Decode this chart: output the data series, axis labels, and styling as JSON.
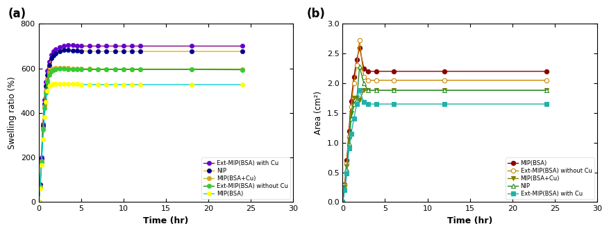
{
  "panel_a": {
    "title": "(a)",
    "xlabel": "Time (hr)",
    "ylabel": "Swelling ratio (%)",
    "xlim": [
      0,
      30
    ],
    "ylim": [
      0,
      800
    ],
    "xticks": [
      0,
      5,
      10,
      15,
      20,
      25,
      30
    ],
    "yticks": [
      0,
      200,
      400,
      600,
      800
    ],
    "series": [
      {
        "label": "Ext-MIP(BSA) with Cu",
        "line_color": "#800080",
        "marker_color": "#6600CC",
        "marker": "o",
        "time": [
          0,
          0.17,
          0.33,
          0.5,
          0.67,
          0.83,
          1.0,
          1.25,
          1.5,
          1.75,
          2.0,
          2.5,
          3.0,
          3.5,
          4.0,
          4.5,
          5.0,
          6.0,
          7.0,
          8.0,
          9.0,
          10.0,
          11.0,
          12.0,
          18.0,
          24.0
        ],
        "values": [
          0,
          80,
          200,
          350,
          460,
          540,
          590,
          630,
          660,
          675,
          685,
          695,
          700,
          705,
          703,
          702,
          700,
          700,
          700,
          700,
          700,
          700,
          700,
          700,
          700,
          700
        ]
      },
      {
        "label": "NIP",
        "line_color": "#FFA500",
        "marker_color": "#00008B",
        "marker": "o",
        "time": [
          0,
          0.17,
          0.33,
          0.5,
          0.67,
          0.83,
          1.0,
          1.25,
          1.5,
          1.75,
          2.0,
          2.5,
          3.0,
          3.5,
          4.0,
          4.5,
          5.0,
          6.0,
          7.0,
          8.0,
          9.0,
          10.0,
          11.0,
          12.0,
          18.0,
          24.0
        ],
        "values": [
          0,
          75,
          190,
          340,
          440,
          520,
          570,
          615,
          645,
          658,
          668,
          678,
          682,
          682,
          680,
          679,
          678,
          677,
          676,
          676,
          676,
          676,
          676,
          676,
          676,
          676
        ]
      },
      {
        "label": "MIP(BSA+Cu)",
        "line_color": "#9ACD32",
        "marker_color": "#DAA520",
        "marker": "o",
        "time": [
          0,
          0.17,
          0.33,
          0.5,
          0.67,
          0.83,
          1.0,
          1.25,
          1.5,
          1.75,
          2.0,
          2.5,
          3.0,
          3.5,
          4.0,
          4.5,
          5.0,
          6.0,
          7.0,
          8.0,
          9.0,
          10.0,
          11.0,
          12.0,
          18.0,
          24.0
        ],
        "values": [
          0,
          70,
          185,
          330,
          430,
          500,
          550,
          580,
          595,
          600,
          603,
          603,
          602,
          601,
          600,
          600,
          599,
          598,
          597,
          597,
          597,
          597,
          597,
          597,
          597,
          597
        ]
      },
      {
        "label": "Ext-MIP(BSA) without Cu",
        "line_color": "#228B22",
        "marker_color": "#32CD32",
        "marker": "o",
        "time": [
          0,
          0.17,
          0.33,
          0.5,
          0.67,
          0.83,
          1.0,
          1.25,
          1.5,
          1.75,
          2.0,
          2.5,
          3.0,
          3.5,
          4.0,
          4.5,
          5.0,
          6.0,
          7.0,
          8.0,
          9.0,
          10.0,
          11.0,
          12.0,
          18.0,
          24.0
        ],
        "values": [
          0,
          65,
          180,
          325,
          420,
          490,
          540,
          570,
          585,
          592,
          596,
          598,
          598,
          597,
          597,
          596,
          595,
          595,
          595,
          595,
          595,
          595,
          595,
          595,
          595,
          594
        ]
      },
      {
        "label": "MIP(BSA)",
        "line_color": "#00CED1",
        "marker_color": "#FFFF00",
        "marker": "o",
        "time": [
          0,
          0.17,
          0.33,
          0.5,
          0.67,
          0.83,
          1.0,
          1.25,
          1.5,
          1.75,
          2.0,
          2.5,
          3.0,
          3.5,
          4.0,
          4.5,
          5.0,
          6.0,
          7.0,
          8.0,
          9.0,
          10.0,
          11.0,
          12.0,
          18.0,
          24.0
        ],
        "values": [
          0,
          60,
          165,
          280,
          380,
          450,
          500,
          520,
          528,
          530,
          531,
          531,
          530,
          530,
          529,
          529,
          528,
          527,
          527,
          527,
          527,
          527,
          527,
          527,
          527,
          527
        ]
      }
    ]
  },
  "panel_b": {
    "title": "(b)",
    "xlabel": "Time (hr)",
    "ylabel": "Area (cm²)",
    "xlim": [
      0,
      30
    ],
    "ylim": [
      0.0,
      3.0
    ],
    "xticks": [
      0,
      5,
      10,
      15,
      20,
      25,
      30
    ],
    "yticks": [
      0.0,
      0.5,
      1.0,
      1.5,
      2.0,
      2.5,
      3.0
    ],
    "series": [
      {
        "label": "MIP(BSA)",
        "line_color": "#8B0000",
        "marker_color": "#8B0000",
        "marker": "o",
        "marker_fill": true,
        "time": [
          0,
          0.25,
          0.5,
          0.75,
          1.0,
          1.33,
          1.67,
          2.0,
          2.5,
          3.0,
          4.0,
          6.0,
          12.0,
          24.0
        ],
        "values": [
          0.0,
          0.3,
          0.7,
          1.2,
          1.7,
          2.1,
          2.4,
          2.6,
          2.25,
          2.2,
          2.2,
          2.2,
          2.2,
          2.2
        ]
      },
      {
        "label": "Ext-MIP(BSA) without Cu",
        "line_color": "#CD8500",
        "marker_color": "#CD8500",
        "marker": "o",
        "marker_fill": false,
        "time": [
          0,
          0.25,
          0.5,
          0.75,
          1.0,
          1.33,
          1.67,
          2.0,
          2.5,
          3.0,
          4.0,
          6.0,
          12.0,
          24.0
        ],
        "values": [
          0.0,
          0.28,
          0.65,
          1.1,
          1.6,
          2.0,
          2.3,
          2.72,
          2.1,
          2.05,
          2.05,
          2.05,
          2.05,
          2.05
        ]
      },
      {
        "label": "MIP(BSA+Cu)",
        "line_color": "#808000",
        "marker_color": "#808000",
        "marker": "v",
        "marker_fill": true,
        "time": [
          0,
          0.25,
          0.5,
          0.75,
          1.0,
          1.33,
          1.67,
          2.0,
          2.5,
          3.0,
          4.0,
          6.0,
          12.0,
          24.0
        ],
        "values": [
          0.0,
          0.25,
          0.6,
          1.05,
          1.5,
          1.75,
          1.75,
          1.72,
          1.88,
          1.88,
          1.88,
          1.88,
          1.88,
          1.88
        ]
      },
      {
        "label": "NIP",
        "line_color": "#228B22",
        "marker_color": "#228B22",
        "marker": "^",
        "marker_fill": false,
        "time": [
          0,
          0.25,
          0.5,
          0.75,
          1.0,
          1.33,
          1.67,
          2.0,
          2.5,
          3.0,
          4.0,
          6.0,
          12.0,
          24.0
        ],
        "values": [
          0.0,
          0.22,
          0.55,
          0.98,
          1.4,
          1.65,
          1.72,
          2.28,
          2.0,
          1.88,
          1.88,
          1.88,
          1.88,
          1.88
        ]
      },
      {
        "label": "Ext-MIP(BSA) with Cu",
        "line_color": "#20B2AA",
        "marker_color": "#20B2AA",
        "marker": "s",
        "marker_fill": true,
        "time": [
          0,
          0.25,
          0.5,
          0.75,
          1.0,
          1.33,
          1.67,
          2.0,
          2.5,
          3.0,
          4.0,
          6.0,
          12.0,
          24.0
        ],
        "values": [
          0.0,
          0.2,
          0.48,
          0.9,
          1.15,
          1.4,
          1.65,
          1.88,
          1.68,
          1.65,
          1.65,
          1.65,
          1.65,
          1.65
        ]
      }
    ]
  }
}
